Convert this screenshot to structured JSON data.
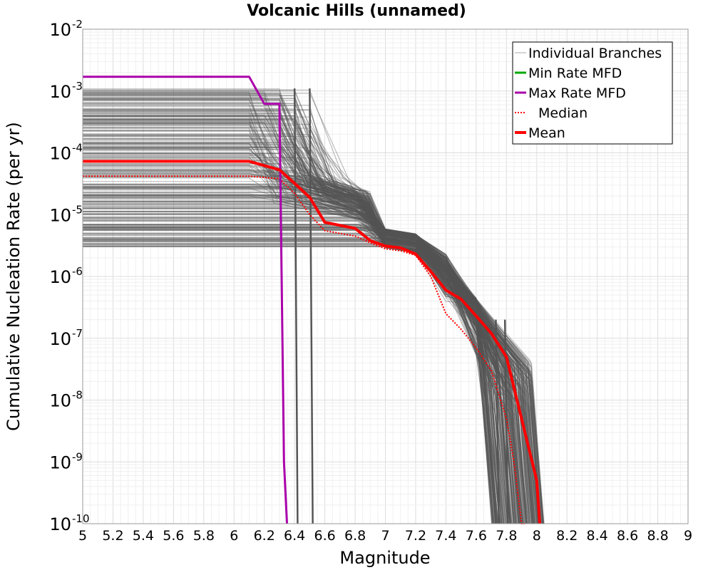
{
  "chart_data": {
    "type": "line",
    "title": "Volcanic Hills (unnamed)",
    "xlabel": "Magnitude",
    "ylabel": "Cumulative Nucleation Rate (per yr)",
    "xlim": [
      5,
      9
    ],
    "ylim": [
      1e-10,
      0.01
    ],
    "yscale": "log",
    "grid": true,
    "legend_position": "top-right",
    "x_ticks": [
      "5",
      "5.2",
      "5.4",
      "5.6",
      "5.8",
      "6",
      "6.2",
      "6.4",
      "6.6",
      "6.8",
      "7",
      "7.2",
      "7.4",
      "7.6",
      "7.8",
      "8",
      "8.2",
      "8.4",
      "8.6",
      "8.8",
      "9"
    ],
    "y_ticks": [
      {
        "base": "10",
        "exp": "-2",
        "value": 0.01
      },
      {
        "base": "10",
        "exp": "-3",
        "value": 0.001
      },
      {
        "base": "10",
        "exp": "-4",
        "value": 0.0001
      },
      {
        "base": "10",
        "exp": "-5",
        "value": 1e-05
      },
      {
        "base": "10",
        "exp": "-6",
        "value": 1e-06
      },
      {
        "base": "10",
        "exp": "-7",
        "value": 1e-07
      },
      {
        "base": "10",
        "exp": "-8",
        "value": 1e-08
      },
      {
        "base": "10",
        "exp": "-9",
        "value": 1e-09
      },
      {
        "base": "10",
        "exp": "-10",
        "value": 1e-10
      }
    ],
    "series": [
      {
        "name": "Individual Branches",
        "color": "#555555",
        "style": "thin",
        "branch_count_shown": 300,
        "rate_range_low_mag": [
          3e-06,
          0.0011
        ]
      },
      {
        "name": "Min Rate MFD",
        "color": "#00aa00",
        "style": "solid",
        "x": [],
        "y": []
      },
      {
        "name": "Max Rate MFD",
        "color": "#aa00aa",
        "style": "solid",
        "x": [
          5.0,
          6.1,
          6.2,
          6.3,
          6.33,
          6.35
        ],
        "y": [
          0.0017,
          0.0017,
          0.00062,
          0.00062,
          1e-09,
          1e-10
        ]
      },
      {
        "name": "Median",
        "color": "#ff0000",
        "style": "dotted",
        "x": [
          5.0,
          6.1,
          6.3,
          6.4,
          6.5,
          6.6,
          6.8,
          6.9,
          7.0,
          7.1,
          7.2,
          7.3,
          7.4,
          7.5,
          7.6,
          7.7,
          7.8,
          7.85,
          7.9,
          7.92
        ],
        "y": [
          4.2e-05,
          4.2e-05,
          3.8e-05,
          2.2e-05,
          1e-05,
          5.5e-06,
          4.5e-06,
          3.5e-06,
          2.8e-06,
          2.6e-06,
          2.2e-06,
          1e-06,
          2.5e-07,
          1.4e-07,
          7e-08,
          3e-08,
          5e-09,
          1e-09,
          1e-10,
          1e-10
        ]
      },
      {
        "name": "Mean",
        "color": "#ff0000",
        "style": "thick",
        "x": [
          5.0,
          6.1,
          6.3,
          6.4,
          6.5,
          6.6,
          6.8,
          6.9,
          7.0,
          7.1,
          7.2,
          7.3,
          7.4,
          7.5,
          7.6,
          7.7,
          7.8,
          7.9,
          8.0,
          8.02
        ],
        "y": [
          7.3e-05,
          7.3e-05,
          5.3e-05,
          3.2e-05,
          1.9e-05,
          7.5e-06,
          6e-06,
          3.8e-06,
          3.1e-06,
          2.9e-06,
          2.3e-06,
          1.2e-06,
          6e-07,
          4.3e-07,
          2.3e-07,
          1.2e-07,
          5e-08,
          5e-09,
          5e-10,
          1e-10
        ]
      }
    ]
  }
}
